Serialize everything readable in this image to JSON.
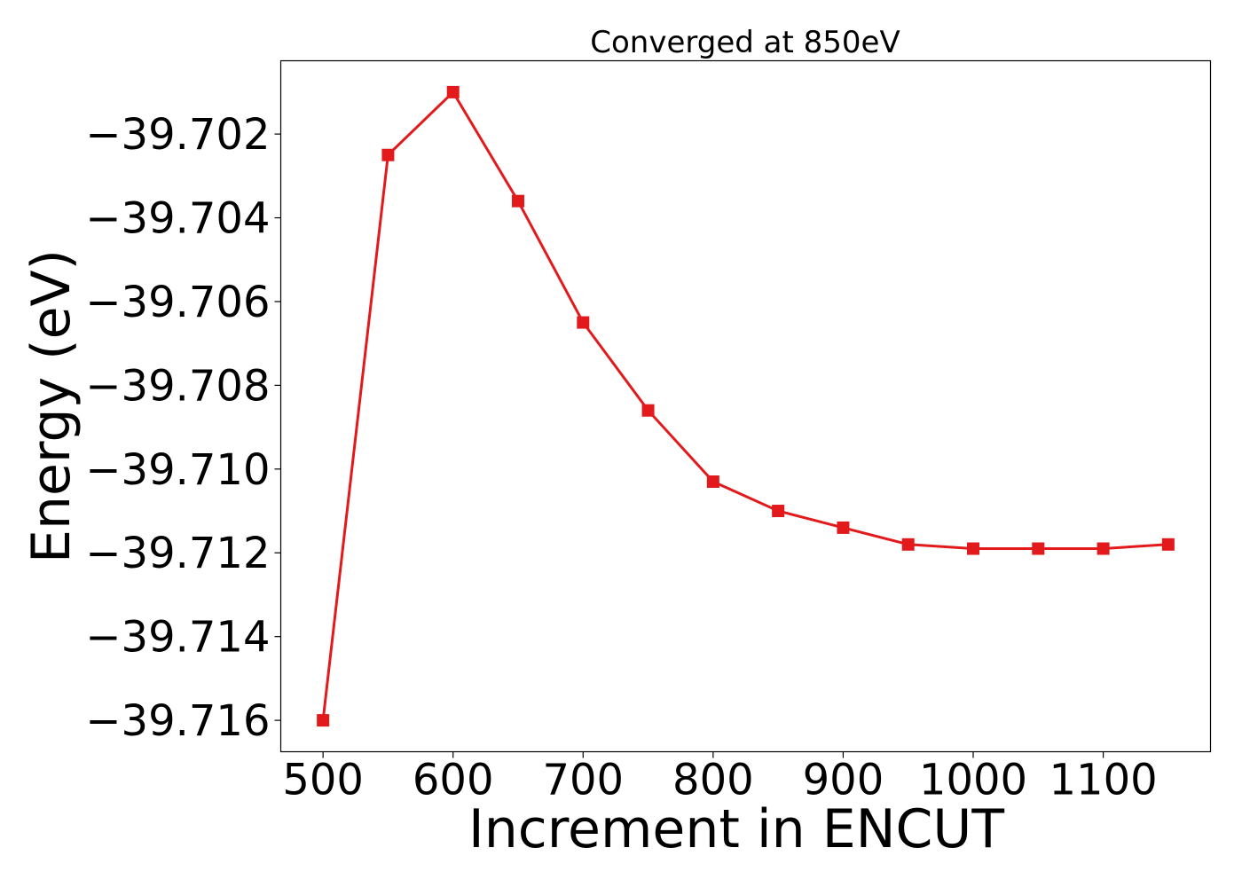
{
  "chart_data": {
    "type": "line",
    "title": "Converged at 850eV",
    "xlabel": "Increment in ENCUT",
    "ylabel": "Energy (eV)",
    "x": [
      500,
      550,
      600,
      650,
      700,
      750,
      800,
      850,
      900,
      950,
      1000,
      1050,
      1100,
      1150
    ],
    "series": [
      {
        "values": [
          -39.716,
          -39.7025,
          -39.701,
          -39.7036,
          -39.7065,
          -39.7086,
          -39.7103,
          -39.711,
          -39.7114,
          -39.7118,
          -39.7119,
          -39.7119,
          -39.7119,
          -39.7118
        ],
        "color": "#e31a1c",
        "marker": "square"
      }
    ],
    "xticks": [
      500,
      600,
      700,
      800,
      900,
      1000,
      1100
    ],
    "xtick_labels": [
      "500",
      "600",
      "700",
      "800",
      "900",
      "1000",
      "1100"
    ],
    "yticks": [
      -39.716,
      -39.714,
      -39.712,
      -39.71,
      -39.708,
      -39.706,
      -39.704,
      -39.702
    ],
    "ytick_labels": [
      "−39.716",
      "−39.714",
      "−39.712",
      "−39.710",
      "−39.708",
      "−39.706",
      "−39.704",
      "−39.702"
    ],
    "xlim": [
      467.5,
      1182.5
    ],
    "ylim": [
      -39.71675,
      -39.70025
    ],
    "grid": false,
    "legend": false
  }
}
